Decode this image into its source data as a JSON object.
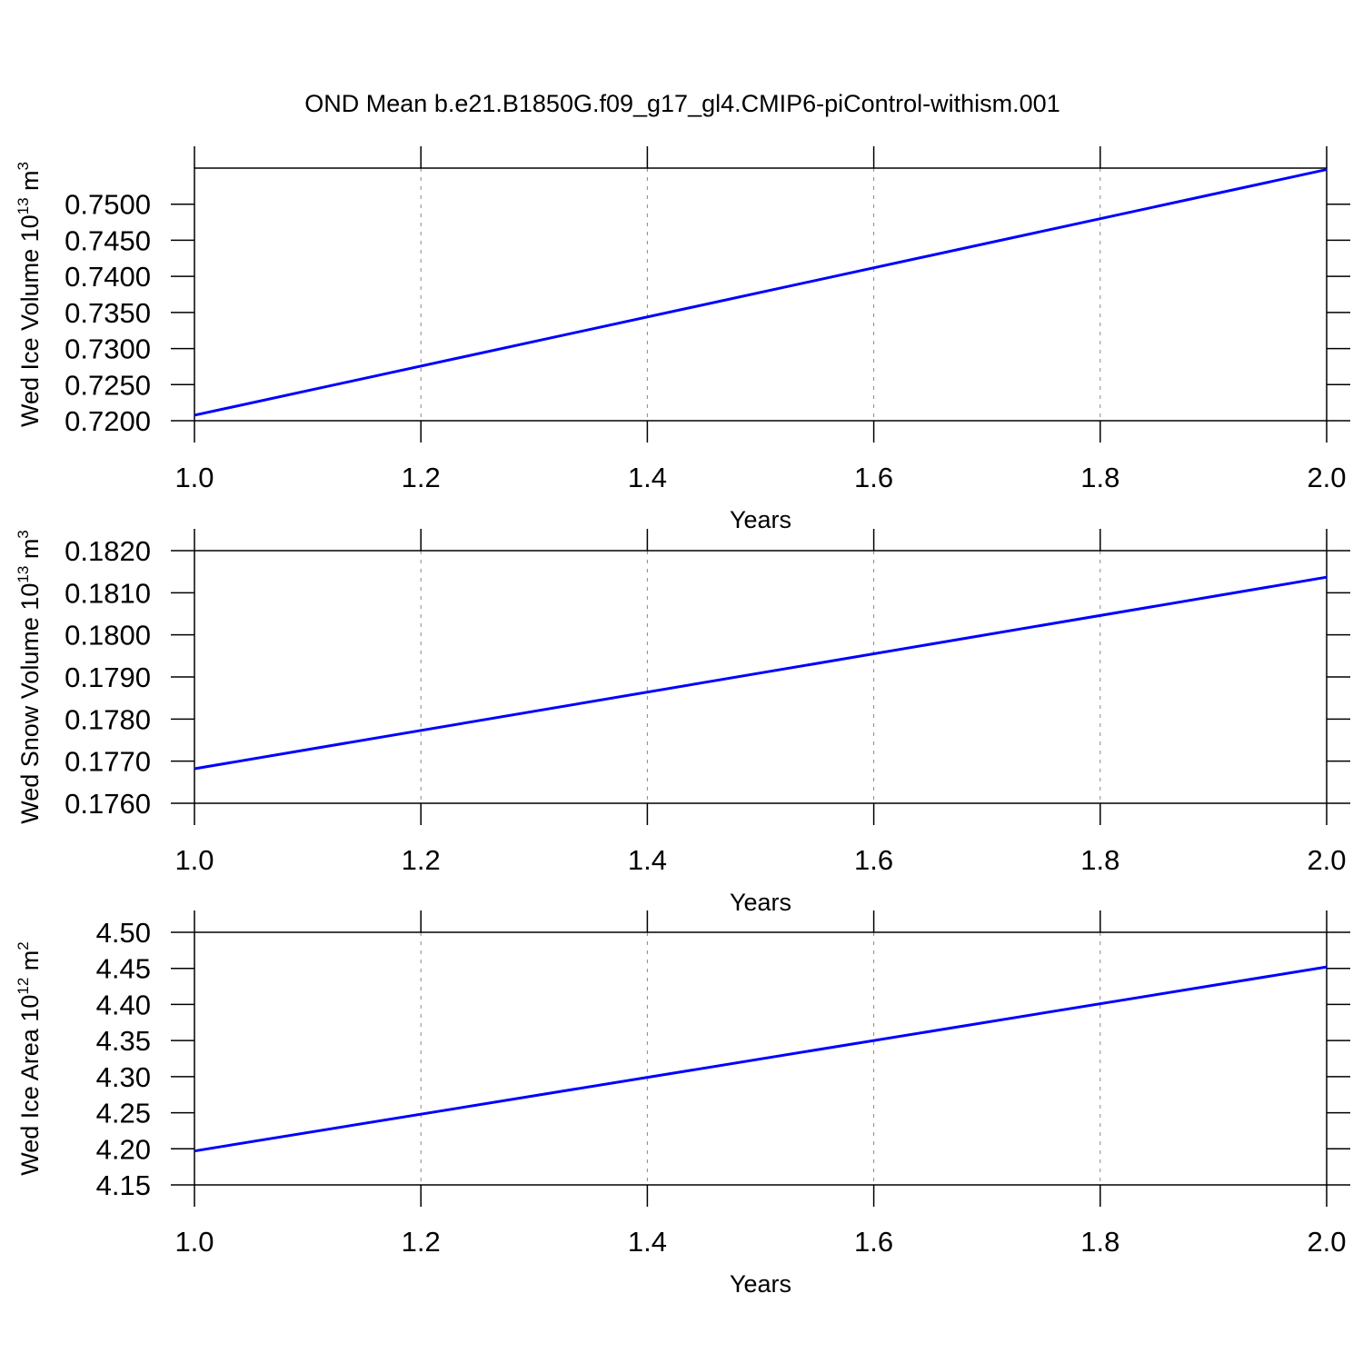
{
  "title": "OND Mean b.e21.B1850G.f09_g17_gl4.CMIP6-piControl-withism.001",
  "chart_data": [
    {
      "type": "line",
      "ylabel": {
        "text": "Wed Ice Volume 10",
        "exponent": "13",
        "unit": " m",
        "unit_exponent": "3"
      },
      "xlabel": "Years",
      "x": [
        1,
        2
      ],
      "series": [
        {
          "color": "#0000ff",
          "values": [
            0.72076,
            0.7548
          ]
        }
      ],
      "xlim": [
        1,
        2
      ],
      "xticks": [
        {
          "value": 1,
          "label": "1.0"
        },
        1.2,
        1.4,
        1.6,
        1.8,
        {
          "value": 2,
          "label": "2.0"
        }
      ],
      "ylim": [
        0.72,
        0.755
      ],
      "yticks": [
        {
          "value": 0.72,
          "label": "0.7200"
        },
        {
          "value": 0.725,
          "label": "0.7250"
        },
        {
          "value": 0.73,
          "label": "0.7300"
        },
        {
          "value": 0.735,
          "label": "0.7350"
        },
        {
          "value": 0.74,
          "label": "0.7400"
        },
        {
          "value": 0.745,
          "label": "0.7450"
        },
        {
          "value": 0.75,
          "label": "0.7500"
        }
      ],
      "grid": true
    },
    {
      "type": "line",
      "ylabel": {
        "text": "Wed Snow Volume 10",
        "exponent": "13",
        "unit": " m",
        "unit_exponent": "3"
      },
      "xlabel": "Years",
      "x": [
        1,
        2
      ],
      "series": [
        {
          "color": "#0000ff",
          "values": [
            0.17682,
            0.18137
          ]
        }
      ],
      "xlim": [
        1,
        2
      ],
      "xticks": [
        {
          "value": 1,
          "label": "1.0"
        },
        1.2,
        1.4,
        1.6,
        1.8,
        {
          "value": 2,
          "label": "2.0"
        }
      ],
      "ylim": [
        0.176,
        0.182
      ],
      "yticks": [
        {
          "value": 0.176,
          "label": "0.1760"
        },
        {
          "value": 0.177,
          "label": "0.1770"
        },
        {
          "value": 0.178,
          "label": "0.1780"
        },
        {
          "value": 0.179,
          "label": "0.1790"
        },
        {
          "value": 0.18,
          "label": "0.1800"
        },
        {
          "value": 0.181,
          "label": "0.1810"
        },
        {
          "value": 0.182,
          "label": "0.1820"
        }
      ],
      "grid": true
    },
    {
      "type": "line",
      "ylabel": {
        "text": "Wed Ice Area 10",
        "exponent": "12",
        "unit": " m",
        "unit_exponent": "2"
      },
      "xlabel": "Years",
      "x": [
        1,
        2
      ],
      "series": [
        {
          "color": "#0000ff",
          "values": [
            4.197,
            4.452
          ]
        }
      ],
      "xlim": [
        1,
        2
      ],
      "xticks": [
        {
          "value": 1,
          "label": "1.0"
        },
        1.2,
        1.4,
        1.6,
        1.8,
        {
          "value": 2,
          "label": "2.0"
        }
      ],
      "ylim": [
        4.15,
        4.5
      ],
      "yticks": [
        4.15,
        {
          "value": 4.2,
          "label": "4.20"
        },
        4.25,
        {
          "value": 4.3,
          "label": "4.30"
        },
        4.35,
        {
          "value": 4.4,
          "label": "4.40"
        },
        4.45,
        {
          "value": 4.5,
          "label": "4.50"
        }
      ],
      "grid": true
    }
  ]
}
